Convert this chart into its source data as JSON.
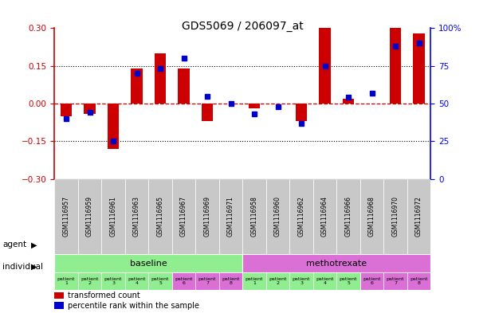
{
  "title": "GDS5069 / 206097_at",
  "samples": [
    "GSM1116957",
    "GSM1116959",
    "GSM1116961",
    "GSM1116963",
    "GSM1116965",
    "GSM1116967",
    "GSM1116969",
    "GSM1116971",
    "GSM1116958",
    "GSM1116960",
    "GSM1116962",
    "GSM1116964",
    "GSM1116966",
    "GSM1116968",
    "GSM1116970",
    "GSM1116972"
  ],
  "red_values": [
    -0.05,
    -0.04,
    -0.18,
    0.14,
    0.2,
    0.14,
    -0.07,
    0.0,
    -0.02,
    0.0,
    -0.07,
    0.3,
    0.02,
    0.0,
    0.3,
    0.28
  ],
  "blue_values": [
    40,
    44,
    25,
    70,
    73,
    80,
    55,
    50,
    43,
    48,
    37,
    75,
    54,
    57,
    88,
    90
  ],
  "ylim_left": [
    -0.3,
    0.3
  ],
  "ylim_right": [
    0,
    100
  ],
  "yticks_left": [
    -0.3,
    -0.15,
    0.0,
    0.15,
    0.3
  ],
  "yticks_right": [
    0,
    25,
    50,
    75,
    100
  ],
  "agent_groups": [
    {
      "label": "baseline",
      "start": 0,
      "end": 8,
      "color": "#90EE90"
    },
    {
      "label": "methotrexate",
      "start": 8,
      "end": 16,
      "color": "#DA70D6"
    }
  ],
  "patient_labels": [
    "patient\n1",
    "patient\n2",
    "patient\n3",
    "patient\n4",
    "patient\n5",
    "patient\n6",
    "patient\n7",
    "patient\n8",
    "patient\n1",
    "patient\n2",
    "patient\n3",
    "patient\n4",
    "patient\n5",
    "patient\n6",
    "patient\n7",
    "patient\n8"
  ],
  "patient_colors": [
    "#90EE90",
    "#90EE90",
    "#90EE90",
    "#90EE90",
    "#90EE90",
    "#DA70D6",
    "#DA70D6",
    "#DA70D6",
    "#90EE90",
    "#90EE90",
    "#90EE90",
    "#90EE90",
    "#90EE90",
    "#DA70D6",
    "#DA70D6",
    "#DA70D6"
  ],
  "bar_width": 0.5,
  "red_color": "#CC0000",
  "blue_color": "#0000CC",
  "legend_red": "transformed count",
  "legend_blue": "percentile rank within the sample",
  "agent_label": "agent",
  "individual_label": "individual",
  "background_color": "#ffffff",
  "sample_bg": "#c8c8c8"
}
